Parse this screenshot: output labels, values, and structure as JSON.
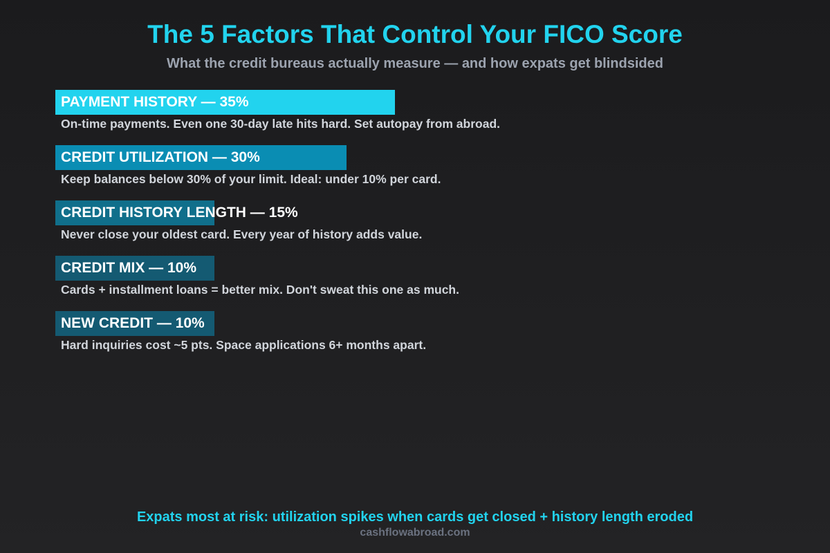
{
  "header": {
    "title": "The 5 Factors That Control Your FICO Score",
    "subtitle": "What the credit bureaus actually measure — and how expats get blindsided"
  },
  "chart_data": {
    "type": "bar",
    "orientation": "horizontal",
    "title": "The 5 Factors That Control Your FICO Score",
    "subtitle": "What the credit bureaus actually measure — and how expats get blindsided",
    "categories": [
      "PAYMENT HISTORY",
      "CREDIT UTILIZATION",
      "CREDIT HISTORY LENGTH",
      "CREDIT MIX",
      "NEW CREDIT"
    ],
    "values": [
      35,
      30,
      15,
      10,
      10
    ],
    "unit": "%",
    "grid": false,
    "factors": [
      {
        "label": "PAYMENT HISTORY — 35%",
        "value": 35,
        "color": "#22d3ee",
        "description": "On-time payments. Even one 30-day late hits hard. Set autopay from abroad."
      },
      {
        "label": "CREDIT UTILIZATION — 30%",
        "value": 30,
        "color": "#0a8db3",
        "description": "Keep balances below 30% of your limit. Ideal: under 10% per card."
      },
      {
        "label": "CREDIT HISTORY LENGTH — 15%",
        "value": 15,
        "color": "#106f8b",
        "description": "Never close your oldest card. Every year of history adds value."
      },
      {
        "label": "CREDIT MIX — 10%",
        "value": 10,
        "color": "#145a72",
        "description": "Cards + installment loans = better mix. Don't sweat this one as much."
      },
      {
        "label": "NEW CREDIT — 10%",
        "value": 10,
        "color": "#145a72",
        "description": "Hard inquiries cost ~5 pts. Space applications 6+ months apart."
      }
    ]
  },
  "footer": {
    "note": "Expats most at risk: utilization spikes when cards get closed + history length eroded",
    "site": "cashflowabroad.com"
  }
}
